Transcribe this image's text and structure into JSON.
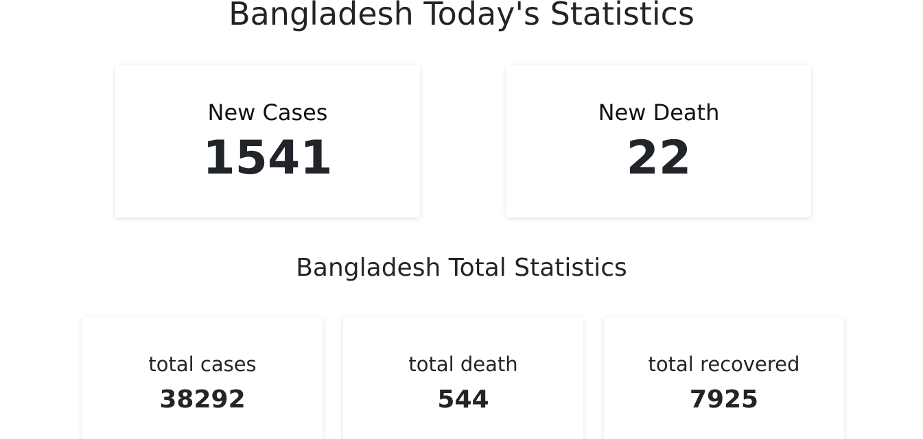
{
  "today": {
    "title": "Bangladesh Today's Statistics",
    "new_cases": {
      "label": "New Cases",
      "value": "1541"
    },
    "new_death": {
      "label": "New Death",
      "value": "22"
    }
  },
  "total": {
    "title": "Bangladesh Total Statistics",
    "cards": [
      {
        "label": "total cases",
        "value": "38292"
      },
      {
        "label": "total death",
        "value": "544"
      },
      {
        "label": "total recovered",
        "value": "7925"
      }
    ]
  }
}
